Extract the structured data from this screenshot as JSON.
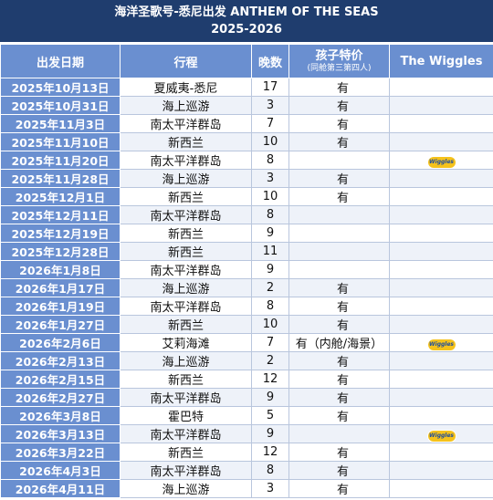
{
  "header": {
    "title": "海洋圣歌号-悉尼出发 ANTHEM OF THE SEAS",
    "period": "2025-2026"
  },
  "columns": {
    "date": "出发日期",
    "route": "行程",
    "nights": "晚数",
    "kids": "孩子特价",
    "kids_note": "(同舱第三第四人)",
    "wiggles": "The Wiggles"
  },
  "wiggles_logo_text": "Wiggles",
  "rows": [
    {
      "date": "2025年10月13日",
      "route": "夏威夷-悉尼",
      "nights": "17",
      "kids": "有",
      "wiggles": false
    },
    {
      "date": "2025年10月31日",
      "route": "海上巡游",
      "nights": "3",
      "kids": "有",
      "wiggles": false
    },
    {
      "date": "2025年11月3日",
      "route": "南太平洋群岛",
      "nights": "7",
      "kids": "有",
      "wiggles": false
    },
    {
      "date": "2025年11月10日",
      "route": "新西兰",
      "nights": "10",
      "kids": "有",
      "wiggles": false
    },
    {
      "date": "2025年11月20日",
      "route": "南太平洋群岛",
      "nights": "8",
      "kids": "",
      "wiggles": true
    },
    {
      "date": "2025年11月28日",
      "route": "海上巡游",
      "nights": "3",
      "kids": "有",
      "wiggles": false
    },
    {
      "date": "2025年12月1日",
      "route": "新西兰",
      "nights": "10",
      "kids": "有",
      "wiggles": false
    },
    {
      "date": "2025年12月11日",
      "route": "南太平洋群岛",
      "nights": "8",
      "kids": "",
      "wiggles": false
    },
    {
      "date": "2025年12月19日",
      "route": "新西兰",
      "nights": "9",
      "kids": "",
      "wiggles": false
    },
    {
      "date": "2025年12月28日",
      "route": "新西兰",
      "nights": "11",
      "kids": "",
      "wiggles": false
    },
    {
      "date": "2026年1月8日",
      "route": "南太平洋群岛",
      "nights": "9",
      "kids": "",
      "wiggles": false
    },
    {
      "date": "2026年1月17日",
      "route": "海上巡游",
      "nights": "2",
      "kids": "有",
      "wiggles": false
    },
    {
      "date": "2026年1月19日",
      "route": "南太平洋群岛",
      "nights": "8",
      "kids": "有",
      "wiggles": false
    },
    {
      "date": "2026年1月27日",
      "route": "新西兰",
      "nights": "10",
      "kids": "有",
      "wiggles": false
    },
    {
      "date": "2026年2月6日",
      "route": "艾莉海滩",
      "nights": "7",
      "kids": "有（内舱/海景）",
      "wiggles": true
    },
    {
      "date": "2026年2月13日",
      "route": "海上巡游",
      "nights": "2",
      "kids": "有",
      "wiggles": false
    },
    {
      "date": "2026年2月15日",
      "route": "新西兰",
      "nights": "12",
      "kids": "有",
      "wiggles": false
    },
    {
      "date": "2026年2月27日",
      "route": "南太平洋群岛",
      "nights": "9",
      "kids": "有",
      "wiggles": false
    },
    {
      "date": "2026年3月8日",
      "route": "霍巴特",
      "nights": "5",
      "kids": "有",
      "wiggles": false
    },
    {
      "date": "2026年3月13日",
      "route": "南太平洋群岛",
      "nights": "9",
      "kids": "",
      "wiggles": true
    },
    {
      "date": "2026年3月22日",
      "route": "新西兰",
      "nights": "12",
      "kids": "有",
      "wiggles": false
    },
    {
      "date": "2026年4月3日",
      "route": "南太平洋群岛",
      "nights": "8",
      "kids": "有",
      "wiggles": false
    },
    {
      "date": "2026年4月11日",
      "route": "海上巡游",
      "nights": "3",
      "kids": "有",
      "wiggles": false
    }
  ]
}
